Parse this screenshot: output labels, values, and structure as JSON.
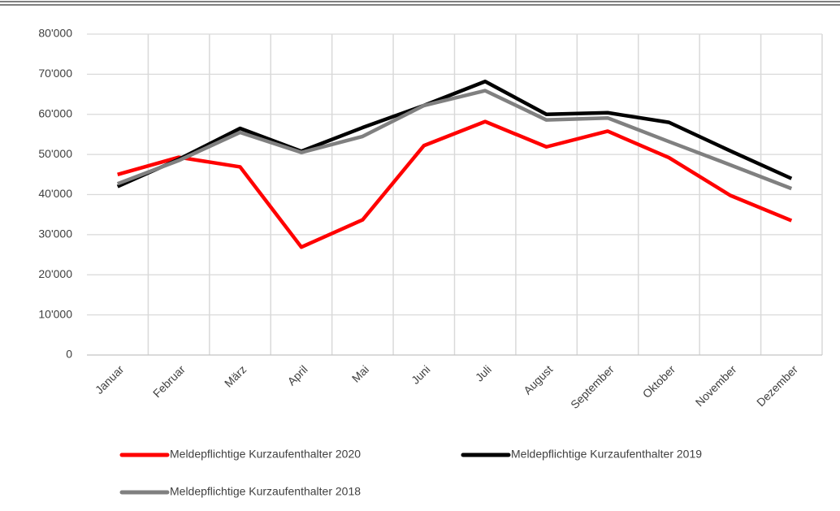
{
  "chart_data": {
    "type": "line",
    "categories": [
      "Januar",
      "Februar",
      "März",
      "April",
      "Mai",
      "Juni",
      "Juli",
      "August",
      "September",
      "Oktober",
      "November",
      "Dezember"
    ],
    "series": [
      {
        "name": "Meldepflichtige Kurzaufenthalter 2020",
        "color": "#ff0000",
        "values": [
          45000,
          49300,
          46900,
          26900,
          33700,
          52200,
          58200,
          51900,
          55800,
          49200,
          39800,
          33500
        ]
      },
      {
        "name": "Meldepflichtige Kurzaufenthalter 2019",
        "color": "#000000",
        "values": [
          42000,
          48800,
          56500,
          50800,
          56700,
          62200,
          68200,
          60000,
          60400,
          58000,
          50900,
          44000
        ]
      },
      {
        "name": "Meldepflichtige Kurzaufenthalter 2018",
        "color": "#808080",
        "values": [
          42700,
          48500,
          55500,
          50500,
          54500,
          62200,
          65900,
          58600,
          59100,
          53200,
          47400,
          41500
        ]
      }
    ],
    "ylim": [
      0,
      80000
    ],
    "yticks": [
      0,
      {
        "value": 10000,
        "label": "10'000"
      },
      {
        "value": 20000,
        "label": "20'000"
      },
      {
        "value": 30000,
        "label": "30'000"
      },
      {
        "value": 40000,
        "label": "40'000"
      },
      {
        "value": 50000,
        "label": "50'000"
      },
      {
        "value": 60000,
        "label": "60'000"
      },
      {
        "value": 70000,
        "label": "70'000"
      },
      {
        "value": 80000,
        "label": "80'000"
      }
    ],
    "grid": true
  }
}
